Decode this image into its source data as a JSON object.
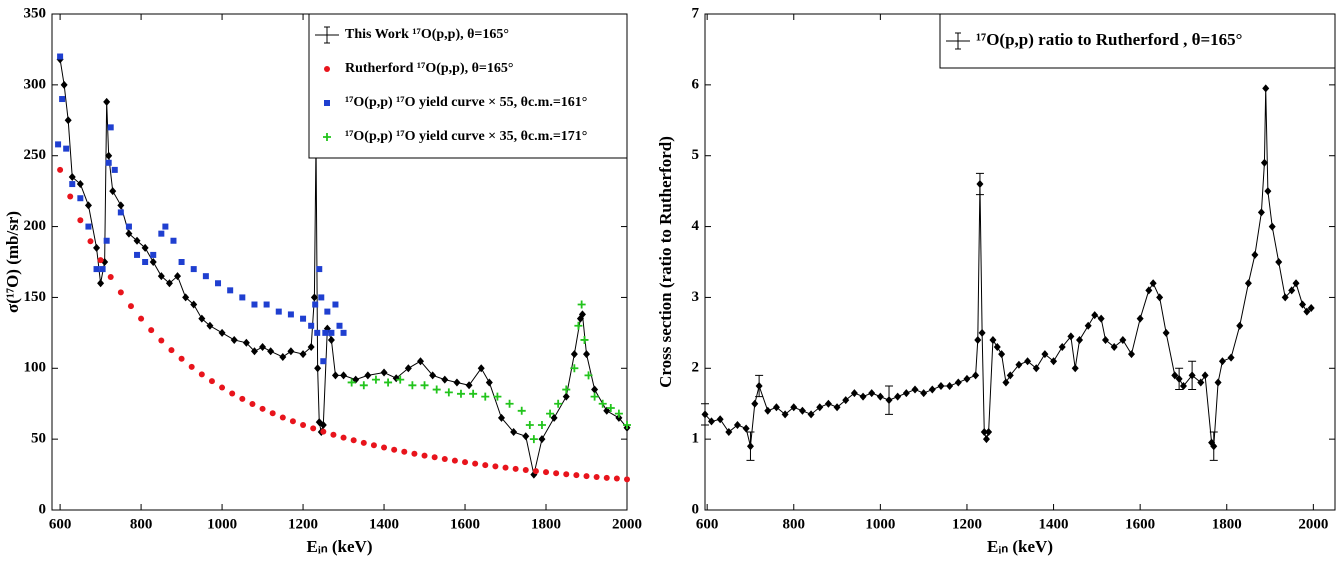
{
  "chart_data": [
    {
      "type": "scatter",
      "xlabel": "Eᵢₙ (keV)",
      "ylabel": "σ(¹⁷O) (mb/sr)",
      "xlim": [
        580,
        2000
      ],
      "ylim": [
        0,
        350
      ],
      "xticks": [
        600,
        800,
        1000,
        1200,
        1400,
        1600,
        1800,
        2000
      ],
      "yticks": [
        0,
        50,
        100,
        150,
        200,
        250,
        300,
        350
      ],
      "legend": "upper right",
      "series": [
        {
          "name": "This Work ¹⁷O(p,p), θ=165°",
          "color": "#000000",
          "marker": "diamond",
          "line": true,
          "x": [
            600,
            610,
            620,
            630,
            650,
            670,
            690,
            700,
            710,
            715,
            720,
            730,
            750,
            770,
            790,
            810,
            830,
            850,
            870,
            890,
            910,
            930,
            950,
            970,
            1000,
            1030,
            1060,
            1080,
            1100,
            1120,
            1150,
            1170,
            1200,
            1220,
            1228,
            1232,
            1236,
            1240,
            1245,
            1250,
            1260,
            1270,
            1280,
            1300,
            1330,
            1360,
            1400,
            1430,
            1460,
            1490,
            1520,
            1550,
            1580,
            1610,
            1640,
            1660,
            1690,
            1720,
            1750,
            1770,
            1790,
            1820,
            1850,
            1870,
            1885,
            1890,
            1900,
            1920,
            1950,
            1980,
            2000
          ],
          "values": [
            318,
            300,
            275,
            235,
            230,
            215,
            185,
            160,
            175,
            288,
            250,
            225,
            215,
            195,
            190,
            185,
            175,
            165,
            160,
            165,
            150,
            145,
            135,
            130,
            125,
            120,
            118,
            112,
            115,
            112,
            108,
            112,
            110,
            115,
            150,
            260,
            100,
            62,
            55,
            60,
            128,
            120,
            95,
            95,
            92,
            95,
            97,
            93,
            100,
            105,
            95,
            92,
            90,
            88,
            100,
            90,
            65,
            55,
            52,
            25,
            50,
            65,
            80,
            110,
            135,
            138,
            110,
            85,
            70,
            65,
            58
          ]
        },
        {
          "name": "Rutherford ¹⁷O(p,p), θ=165°",
          "color": "#e8141c",
          "marker": "circle",
          "line": false,
          "x": [
            600,
            625,
            650,
            675,
            700,
            725,
            750,
            775,
            800,
            825,
            850,
            875,
            900,
            925,
            950,
            975,
            1000,
            1025,
            1050,
            1075,
            1100,
            1125,
            1150,
            1175,
            1200,
            1225,
            1250,
            1275,
            1300,
            1325,
            1350,
            1375,
            1400,
            1425,
            1450,
            1475,
            1500,
            1525,
            1550,
            1575,
            1600,
            1625,
            1650,
            1675,
            1700,
            1725,
            1750,
            1775,
            1800,
            1825,
            1850,
            1875,
            1900,
            1925,
            1950,
            1975,
            2000
          ],
          "values": [
            240,
            221.2,
            204.5,
            189.6,
            176.3,
            164.4,
            153.6,
            143.9,
            135,
            126.9,
            119.6,
            112.8,
            106.7,
            101,
            95.7,
            90.9,
            86.4,
            82.2,
            78.4,
            74.8,
            71.4,
            68.3,
            65.3,
            62.6,
            60,
            57.6,
            55.3,
            53.1,
            51.1,
            49.2,
            47.4,
            45.7,
            44.1,
            42.5,
            41.1,
            39.7,
            38.4,
            37.2,
            36,
            34.8,
            33.8,
            32.7,
            31.7,
            30.8,
            29.9,
            29,
            28.2,
            27.4,
            26.7,
            25.9,
            25.2,
            24.6,
            23.9,
            23.3,
            22.7,
            22.2,
            21.6
          ]
        },
        {
          "name": "¹⁷O(p,p) ¹⁷O yield curve × 55, θc.m.=161°",
          "color": "#1f3fd0",
          "marker": "square",
          "line": false,
          "x": [
            595,
            600,
            605,
            615,
            630,
            650,
            670,
            690,
            705,
            715,
            720,
            725,
            735,
            750,
            770,
            790,
            810,
            830,
            850,
            860,
            880,
            900,
            930,
            960,
            990,
            1020,
            1050,
            1080,
            1110,
            1140,
            1170,
            1200,
            1220,
            1230,
            1235,
            1240,
            1245,
            1250,
            1255,
            1260,
            1270,
            1280,
            1290,
            1300
          ],
          "values": [
            258,
            320,
            290,
            255,
            230,
            220,
            200,
            170,
            170,
            190,
            245,
            270,
            240,
            210,
            200,
            180,
            175,
            180,
            195,
            200,
            190,
            175,
            170,
            165,
            160,
            155,
            150,
            145,
            145,
            140,
            138,
            135,
            130,
            145,
            125,
            170,
            150,
            105,
            125,
            140,
            125,
            145,
            130,
            125
          ]
        },
        {
          "name": "¹⁷O(p,p) ¹⁷O yield curve × 35, θc.m.=171°",
          "color": "#22c41c",
          "marker": "plus",
          "line": false,
          "x": [
            1320,
            1350,
            1380,
            1410,
            1440,
            1470,
            1500,
            1530,
            1560,
            1590,
            1620,
            1650,
            1680,
            1710,
            1740,
            1760,
            1770,
            1790,
            1810,
            1830,
            1850,
            1870,
            1880,
            1888,
            1895,
            1905,
            1920,
            1940,
            1960,
            1980,
            2000
          ],
          "values": [
            90,
            88,
            92,
            90,
            92,
            88,
            88,
            85,
            83,
            82,
            82,
            80,
            80,
            75,
            70,
            60,
            50,
            60,
            68,
            75,
            85,
            100,
            130,
            145,
            120,
            95,
            80,
            75,
            72,
            68,
            60
          ]
        }
      ]
    },
    {
      "type": "line",
      "xlabel": "Eᵢₙ (keV)",
      "ylabel": "Cross section (ratio to Rutherford)",
      "xlim": [
        595,
        2050
      ],
      "ylim": [
        0,
        7
      ],
      "xticks": [
        600,
        800,
        1000,
        1200,
        1400,
        1600,
        1800,
        2000
      ],
      "yticks": [
        0,
        1,
        2,
        3,
        4,
        5,
        6,
        7
      ],
      "legend": "upper right",
      "series": [
        {
          "name": "¹⁷O(p,p) ratio to Rutherford , θ=165°",
          "color": "#000000",
          "marker": "diamond",
          "line": true,
          "x": [
            595,
            610,
            630,
            650,
            670,
            690,
            700,
            710,
            720,
            740,
            760,
            780,
            800,
            820,
            840,
            860,
            880,
            900,
            920,
            940,
            960,
            980,
            1000,
            1020,
            1040,
            1060,
            1080,
            1100,
            1120,
            1140,
            1160,
            1180,
            1200,
            1220,
            1225,
            1230,
            1235,
            1240,
            1245,
            1250,
            1260,
            1270,
            1280,
            1290,
            1300,
            1320,
            1340,
            1360,
            1380,
            1400,
            1420,
            1440,
            1450,
            1460,
            1480,
            1495,
            1510,
            1520,
            1540,
            1560,
            1580,
            1600,
            1620,
            1630,
            1645,
            1660,
            1680,
            1690,
            1700,
            1720,
            1740,
            1750,
            1765,
            1770,
            1780,
            1790,
            1810,
            1830,
            1850,
            1865,
            1880,
            1887,
            1890,
            1895,
            1905,
            1920,
            1935,
            1950,
            1960,
            1975,
            1985,
            1995
          ],
          "values": [
            1.35,
            1.25,
            1.28,
            1.1,
            1.2,
            1.15,
            0.9,
            1.5,
            1.75,
            1.4,
            1.45,
            1.35,
            1.45,
            1.4,
            1.35,
            1.45,
            1.5,
            1.45,
            1.55,
            1.65,
            1.6,
            1.65,
            1.6,
            1.55,
            1.6,
            1.65,
            1.7,
            1.65,
            1.7,
            1.75,
            1.75,
            1.8,
            1.85,
            1.9,
            2.4,
            4.6,
            2.5,
            1.1,
            1.0,
            1.1,
            2.4,
            2.3,
            2.2,
            1.8,
            1.9,
            2.05,
            2.1,
            2.0,
            2.2,
            2.1,
            2.3,
            2.45,
            2.0,
            2.4,
            2.6,
            2.75,
            2.7,
            2.4,
            2.3,
            2.4,
            2.2,
            2.7,
            3.1,
            3.2,
            3.0,
            2.5,
            1.9,
            1.85,
            1.75,
            1.9,
            1.8,
            1.9,
            0.95,
            0.9,
            1.8,
            2.1,
            2.15,
            2.6,
            3.2,
            3.6,
            4.2,
            4.9,
            5.95,
            4.5,
            4.0,
            3.5,
            3.0,
            3.1,
            3.2,
            2.9,
            2.8,
            2.85
          ],
          "errors": [
            0.15,
            null,
            null,
            null,
            null,
            null,
            0.2,
            null,
            0.15,
            null,
            null,
            null,
            null,
            null,
            null,
            null,
            null,
            null,
            null,
            null,
            null,
            null,
            null,
            0.2,
            null,
            null,
            null,
            null,
            null,
            null,
            null,
            null,
            null,
            null,
            null,
            0.15,
            null,
            null,
            null,
            null,
            null,
            null,
            null,
            null,
            null,
            null,
            null,
            null,
            null,
            null,
            null,
            null,
            null,
            null,
            null,
            null,
            null,
            null,
            null,
            null,
            null,
            null,
            null,
            null,
            null,
            null,
            null,
            0.15,
            null,
            0.2,
            null,
            null,
            null,
            0.2,
            null,
            null,
            null,
            null,
            null,
            null,
            null,
            null,
            null,
            null,
            null,
            null,
            null,
            null,
            null,
            null,
            null,
            null
          ]
        }
      ]
    }
  ]
}
